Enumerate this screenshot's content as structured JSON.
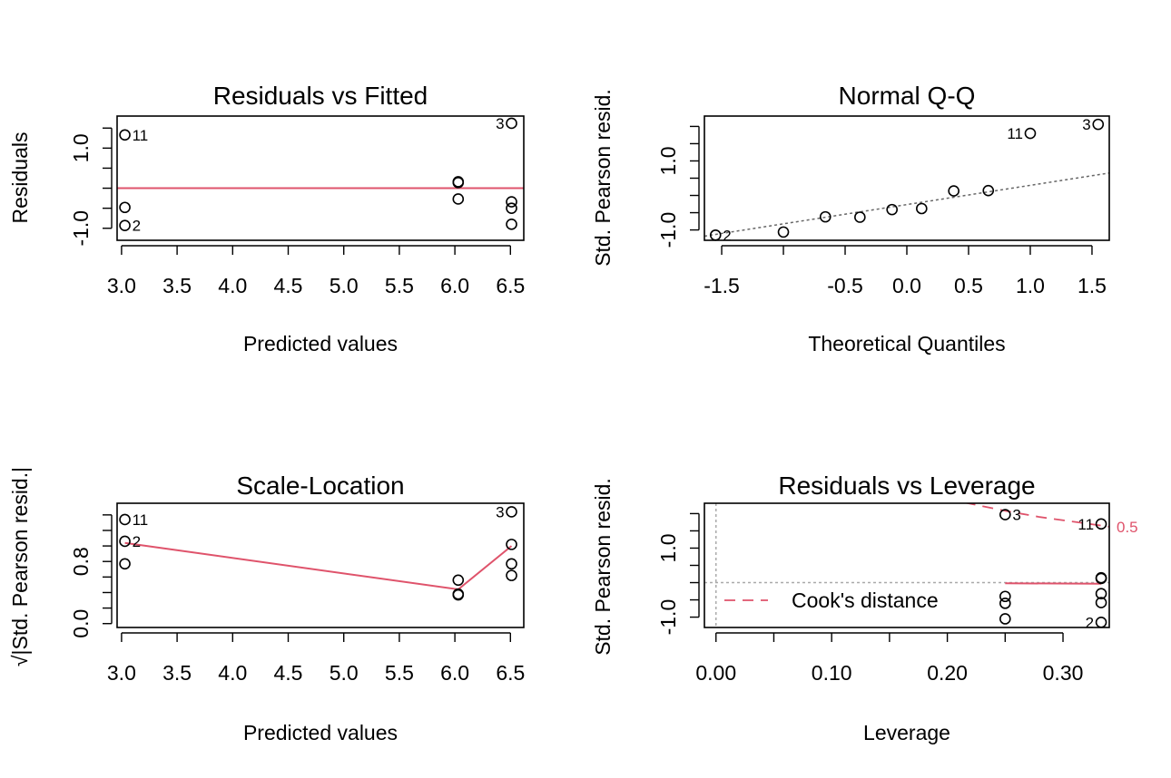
{
  "colors": {
    "smooth": "#DF536B",
    "cook": "#DF536B",
    "reference": "#AAAAAA",
    "qqline": "#666666",
    "points": "#000000"
  },
  "chart_data": [
    {
      "type": "scatter",
      "id": "resid-fitted",
      "title": "Residuals vs Fitted",
      "xlabel": "Predicted values",
      "ylabel": "Residuals",
      "xlim": [
        2.96,
        6.62
      ],
      "ylim": [
        -1.3,
        1.8
      ],
      "x_ticks": [
        3.0,
        3.5,
        4.0,
        4.5,
        5.0,
        5.5,
        6.0,
        6.5
      ],
      "x_tick_labels": [
        "3.0",
        "3.5",
        "4.0",
        "4.5",
        "5.0",
        "5.5",
        "6.0",
        "6.5"
      ],
      "y_ticks": [
        -1.0,
        -0.5,
        0.0,
        0.5,
        1.0,
        1.5
      ],
      "y_tick_labels": [
        "-1.0",
        "",
        "",
        "",
        "1.0",
        ""
      ],
      "grid": false,
      "reference_line": {
        "y": 0,
        "style": "dotted"
      },
      "points": [
        {
          "x": 3.03,
          "y": 1.33,
          "label": "11",
          "label_side": "right"
        },
        {
          "x": 3.03,
          "y": -0.48,
          "label": "",
          "label_side": "right"
        },
        {
          "x": 3.03,
          "y": -0.93,
          "label": "2",
          "label_side": "right"
        },
        {
          "x": 6.03,
          "y": 0.16,
          "label": "",
          "label_side": "right"
        },
        {
          "x": 6.03,
          "y": 0.14,
          "label": "",
          "label_side": "right"
        },
        {
          "x": 6.03,
          "y": -0.27,
          "label": "",
          "label_side": "right"
        },
        {
          "x": 6.51,
          "y": 1.62,
          "label": "3",
          "label_side": "left"
        },
        {
          "x": 6.51,
          "y": -0.34,
          "label": "",
          "label_side": "right"
        },
        {
          "x": 6.51,
          "y": -0.5,
          "label": "",
          "label_side": "right"
        },
        {
          "x": 6.51,
          "y": -0.9,
          "label": "",
          "label_side": "right"
        }
      ],
      "smooth": [
        {
          "x": 2.96,
          "y": 0.0
        },
        {
          "x": 6.62,
          "y": 0.0
        }
      ]
    },
    {
      "type": "scatter",
      "id": "normal-qq",
      "title": "Normal Q-Q",
      "xlabel": "Theoretical Quantiles",
      "ylabel": "Std. Pearson resid.",
      "xlim": [
        -1.64,
        1.64
      ],
      "ylim": [
        -1.3,
        2.3
      ],
      "x_ticks": [
        -1.5,
        -1.0,
        -0.5,
        0.0,
        0.5,
        1.0,
        1.5
      ],
      "x_tick_labels": [
        "-1.5",
        "",
        "-0.5",
        "0.0",
        "0.5",
        "1.0",
        "1.5"
      ],
      "y_ticks": [
        -1.0,
        -0.5,
        0.0,
        0.5,
        1.0,
        1.5,
        2.0
      ],
      "y_tick_labels": [
        "-1.0",
        "",
        "",
        "",
        "1.0",
        "",
        ""
      ],
      "grid": false,
      "points": [
        {
          "x": -1.55,
          "y": -1.15,
          "label": "2",
          "label_side": "right"
        },
        {
          "x": -1.0,
          "y": -1.06,
          "label": "",
          "label_side": "right"
        },
        {
          "x": -0.66,
          "y": -0.62,
          "label": "",
          "label_side": "right"
        },
        {
          "x": -0.38,
          "y": -0.63,
          "label": "",
          "label_side": "right"
        },
        {
          "x": -0.12,
          "y": -0.41,
          "label": "",
          "label_side": "right"
        },
        {
          "x": 0.12,
          "y": -0.38,
          "label": "",
          "label_side": "right"
        },
        {
          "x": 0.38,
          "y": 0.13,
          "label": "",
          "label_side": "right"
        },
        {
          "x": 0.66,
          "y": 0.14,
          "label": "",
          "label_side": "right"
        },
        {
          "x": 1.0,
          "y": 1.8,
          "label": "11",
          "label_side": "left"
        },
        {
          "x": 1.55,
          "y": 2.06,
          "label": "3",
          "label_side": "left"
        }
      ],
      "qq_line": [
        {
          "x": -1.64,
          "y": -1.18
        },
        {
          "x": 1.64,
          "y": 0.65
        }
      ]
    },
    {
      "type": "scatter",
      "id": "scale-location",
      "title": "Scale-Location",
      "xlabel": "Predicted values",
      "ylabel": "√|Std. Pearson resid.|",
      "xlim": [
        2.96,
        6.62
      ],
      "ylim": [
        -0.05,
        1.55
      ],
      "x_ticks": [
        3.0,
        3.5,
        4.0,
        4.5,
        5.0,
        5.5,
        6.0,
        6.5
      ],
      "x_tick_labels": [
        "3.0",
        "3.5",
        "4.0",
        "4.5",
        "5.0",
        "5.5",
        "6.0",
        "6.5"
      ],
      "y_ticks": [
        0.0,
        0.2,
        0.4,
        0.6,
        0.8,
        1.0,
        1.2,
        1.4
      ],
      "y_tick_labels": [
        "0.0",
        "",
        "",
        "",
        "0.8",
        "",
        "",
        ""
      ],
      "grid": false,
      "points": [
        {
          "x": 3.03,
          "y": 1.34,
          "label": "11",
          "label_side": "right"
        },
        {
          "x": 3.03,
          "y": 1.06,
          "label": "2",
          "label_side": "right"
        },
        {
          "x": 3.03,
          "y": 0.77,
          "label": "",
          "label_side": "right"
        },
        {
          "x": 6.03,
          "y": 0.56,
          "label": "",
          "label_side": "right"
        },
        {
          "x": 6.03,
          "y": 0.38,
          "label": "",
          "label_side": "right"
        },
        {
          "x": 6.03,
          "y": 0.37,
          "label": "",
          "label_side": "right"
        },
        {
          "x": 6.51,
          "y": 1.44,
          "label": "3",
          "label_side": "left"
        },
        {
          "x": 6.51,
          "y": 1.02,
          "label": "",
          "label_side": "right"
        },
        {
          "x": 6.51,
          "y": 0.77,
          "label": "",
          "label_side": "right"
        },
        {
          "x": 6.51,
          "y": 0.62,
          "label": "",
          "label_side": "right"
        }
      ],
      "smooth": [
        {
          "x": 3.03,
          "y": 1.04
        },
        {
          "x": 6.03,
          "y": 0.44
        },
        {
          "x": 6.51,
          "y": 1.0
        }
      ]
    },
    {
      "type": "scatter",
      "id": "resid-leverage",
      "title": "Residuals vs Leverage",
      "xlabel": "Leverage",
      "ylabel": "Std. Pearson resid.",
      "xlim": [
        -0.01,
        0.34
      ],
      "ylim": [
        -1.3,
        2.3
      ],
      "x_ticks": [
        0.0,
        0.05,
        0.1,
        0.15,
        0.2,
        0.25,
        0.3
      ],
      "x_tick_labels": [
        "0.00",
        "",
        "0.10",
        "",
        "0.20",
        "",
        "0.30"
      ],
      "y_ticks": [
        -1.0,
        -0.5,
        0.0,
        0.5,
        1.0,
        1.5,
        2.0
      ],
      "y_tick_labels": [
        "-1.0",
        "",
        "",
        "",
        "1.0",
        "",
        ""
      ],
      "grid": false,
      "reference_lines": {
        "x": 0,
        "y": 0,
        "style": "dotted"
      },
      "points": [
        {
          "x": 0.25,
          "y": 1.97,
          "label": "3",
          "label_side": "right"
        },
        {
          "x": 0.25,
          "y": -0.4,
          "label": "",
          "label_side": "right"
        },
        {
          "x": 0.25,
          "y": -0.6,
          "label": "",
          "label_side": "right"
        },
        {
          "x": 0.25,
          "y": -1.05,
          "label": "",
          "label_side": "right"
        },
        {
          "x": 0.333,
          "y": 1.7,
          "label": "11",
          "label_side": "left"
        },
        {
          "x": 0.333,
          "y": 0.14,
          "label": "",
          "label_side": "right"
        },
        {
          "x": 0.333,
          "y": 0.12,
          "label": "",
          "label_side": "right"
        },
        {
          "x": 0.333,
          "y": -0.32,
          "label": "",
          "label_side": "right"
        },
        {
          "x": 0.333,
          "y": -0.58,
          "label": "",
          "label_side": "right"
        },
        {
          "x": 0.333,
          "y": -1.15,
          "label": "2",
          "label_side": "left"
        }
      ],
      "smooth": [
        {
          "x": 0.25,
          "y": -0.02
        },
        {
          "x": 0.333,
          "y": -0.03
        }
      ],
      "cook_contour": [
        {
          "x": 0.215,
          "y": 2.32
        },
        {
          "x": 0.25,
          "y": 2.08
        },
        {
          "x": 0.28,
          "y": 1.9
        },
        {
          "x": 0.31,
          "y": 1.76
        },
        {
          "x": 0.34,
          "y": 1.62
        }
      ],
      "cook_contour_label": "0.5",
      "legend": {
        "label": "Cook's distance",
        "position": "bottom-left"
      }
    }
  ]
}
